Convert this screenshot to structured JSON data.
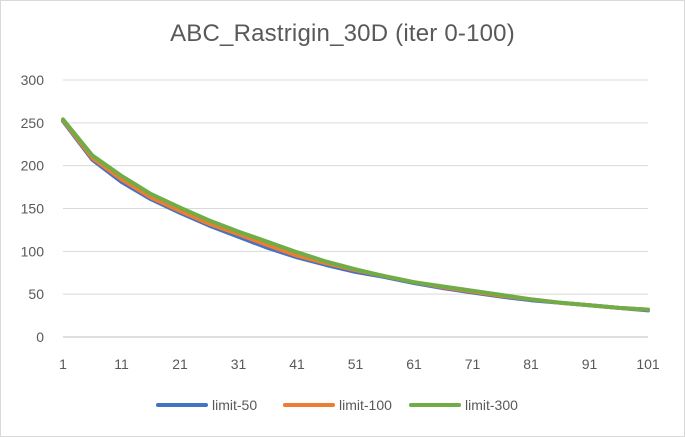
{
  "chart_data": {
    "type": "line",
    "title": "ABC_Rastrigin_30D (iter 0-100)",
    "xlabel": "",
    "ylabel": "",
    "xlim": [
      1,
      101
    ],
    "ylim": [
      0,
      300
    ],
    "y_ticks": [
      0,
      50,
      100,
      150,
      200,
      250,
      300
    ],
    "x_ticks": [
      1,
      11,
      21,
      31,
      41,
      51,
      61,
      71,
      81,
      91,
      101
    ],
    "grid": "horizontal",
    "legend": "bottom",
    "x": [
      1,
      6,
      11,
      16,
      21,
      26,
      31,
      36,
      41,
      46,
      51,
      56,
      61,
      66,
      71,
      76,
      81,
      86,
      91,
      96,
      101
    ],
    "series": [
      {
        "name": "limit-50",
        "color": "#4472C4",
        "values": [
          252,
          207,
          181,
          161,
          145,
          130,
          117,
          104,
          93,
          84,
          76,
          70,
          63,
          57,
          52,
          47,
          43,
          40,
          37,
          34,
          31
        ]
      },
      {
        "name": "limit-100",
        "color": "#ED7D31",
        "values": [
          253,
          209,
          184,
          163,
          147,
          132,
          120,
          107,
          95,
          86,
          78,
          71,
          64,
          58,
          53,
          48,
          44,
          40,
          37,
          34,
          32
        ]
      },
      {
        "name": "limit-300",
        "color": "#70AD47",
        "values": [
          254,
          212,
          188,
          167,
          151,
          136,
          123,
          111,
          99,
          88,
          79,
          71,
          64,
          59,
          54,
          49,
          44,
          40,
          37,
          34,
          32
        ]
      }
    ]
  }
}
